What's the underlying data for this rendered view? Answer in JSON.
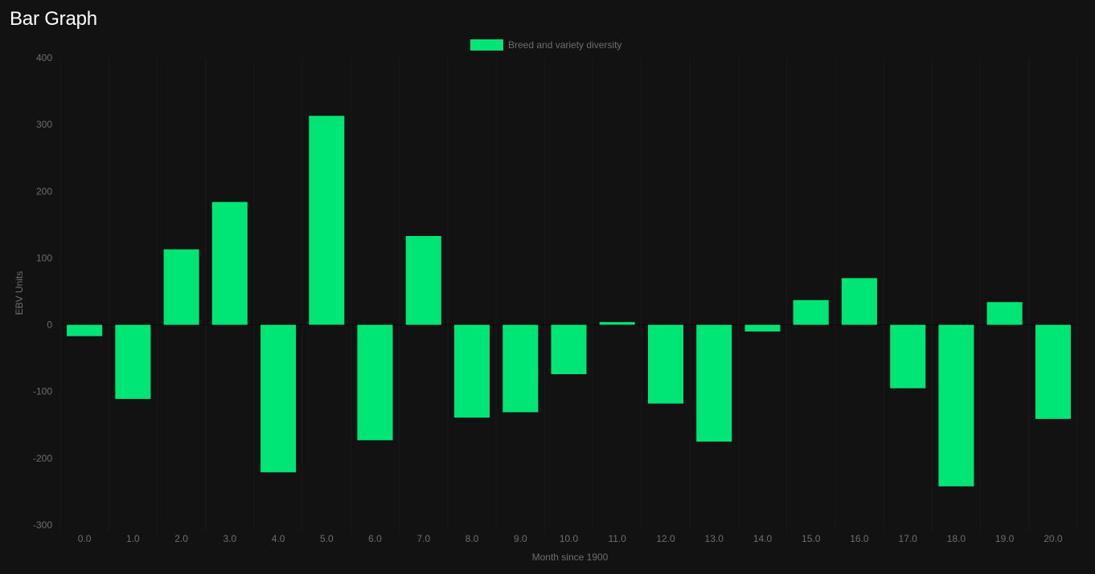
{
  "page": {
    "title": "Bar Graph"
  },
  "colors": {
    "background": "#121212",
    "bar": "#00e676",
    "text": "#6e6e6e",
    "title": "#ffffff",
    "grid": "#1a1a1a"
  },
  "chart_data": {
    "type": "bar",
    "categories": [
      "0.0",
      "1.0",
      "2.0",
      "3.0",
      "4.0",
      "5.0",
      "6.0",
      "7.0",
      "8.0",
      "9.0",
      "10.0",
      "11.0",
      "12.0",
      "13.0",
      "14.0",
      "15.0",
      "16.0",
      "17.0",
      "18.0",
      "19.0",
      "20.0"
    ],
    "series": [
      {
        "name": "Breed and variety diversity",
        "values": [
          -17,
          -111,
          113,
          184,
          -221,
          313,
          -173,
          133,
          -139,
          -131,
          -74,
          4,
          -118,
          -175,
          -10,
          37,
          70,
          -95,
          -242,
          34,
          -141
        ]
      }
    ],
    "xlabel": "Month since 1900",
    "ylabel": "EBV Units",
    "ylim": [
      -300,
      400
    ],
    "yticks": [
      "400",
      "300",
      "200",
      "100",
      "0",
      "-100",
      "-200",
      "-300"
    ],
    "legend_position": "top-center",
    "grid": true
  }
}
